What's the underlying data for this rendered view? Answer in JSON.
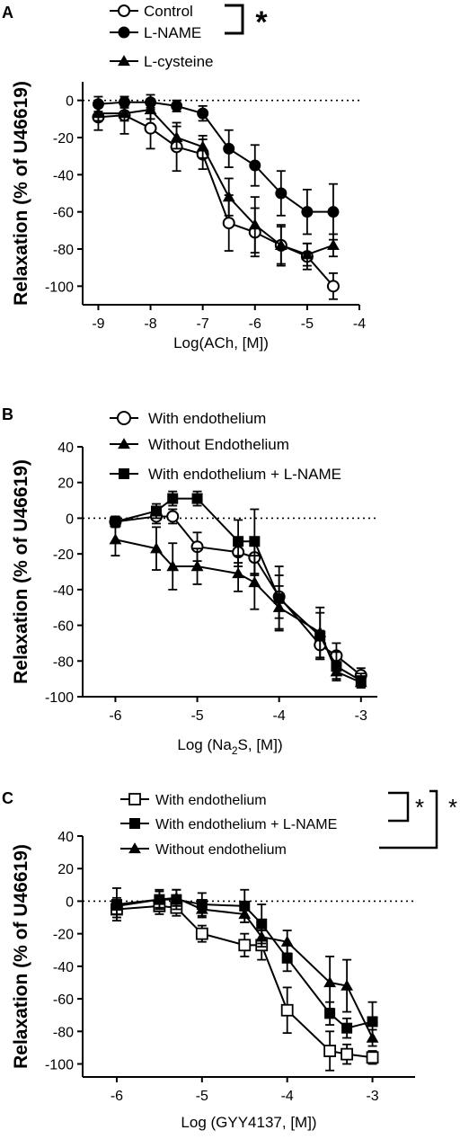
{
  "chart_data": [
    {
      "panel_label": "A",
      "type": "line",
      "xlabel": "Log(ACh, [M])",
      "ylabel": "Relaxation (% of U46619)",
      "xlim": [
        -9.3,
        -4
      ],
      "ylim": [
        -110,
        10
      ],
      "xticks": [
        -9,
        -8,
        -7,
        -6,
        -5,
        -4
      ],
      "yticks": [
        0,
        -20,
        -40,
        -60,
        -80,
        -100
      ],
      "x": [
        -9,
        -8.5,
        -8,
        -7.5,
        -7,
        -6.5,
        -6,
        -5.5,
        -5,
        -4.5
      ],
      "series": [
        {
          "name": "Control",
          "marker": "circle-open",
          "values": [
            -9,
            -8,
            -15,
            -25,
            -29,
            -66,
            -71,
            -78,
            -84,
            -100
          ],
          "err": [
            7,
            10,
            11,
            13,
            8,
            15,
            13,
            10,
            7,
            7
          ]
        },
        {
          "name": "L-NAME",
          "marker": "circle-filled",
          "values": [
            -2,
            -1,
            -1,
            -3,
            -7,
            -26,
            -35,
            -50,
            -60,
            -60
          ],
          "err": [
            4,
            3,
            4,
            3,
            4,
            10,
            11,
            12,
            12,
            15
          ]
        },
        {
          "name": "L-cysteine",
          "marker": "triangle-filled",
          "values": [
            -7,
            -7,
            -5,
            -20,
            -25,
            -52,
            -67,
            -78,
            -83,
            -78
          ],
          "err": [
            4,
            4,
            5,
            6,
            6,
            10,
            15,
            11,
            6,
            6
          ]
        }
      ],
      "legend_position": "top",
      "significance": {
        "bracket_series": [
          "Control",
          "L-NAME"
        ],
        "marker": "*"
      }
    },
    {
      "panel_label": "B",
      "type": "line",
      "xlabel_prefix": "Log (Na",
      "xlabel_sub": "2",
      "xlabel_suffix": "S, [M])",
      "ylabel": "Relaxation (% of U46619)",
      "xlim": [
        -6.4,
        -2.8
      ],
      "ylim": [
        -100,
        40
      ],
      "xticks": [
        -6,
        -5,
        -4,
        -3
      ],
      "yticks": [
        40,
        20,
        0,
        -20,
        -40,
        -60,
        -80,
        -100
      ],
      "x": [
        -6,
        -5.5,
        -5.3,
        -5,
        -4.5,
        -4.3,
        -4,
        -3.5,
        -3.3,
        -3
      ],
      "series": [
        {
          "name": "With endothelium",
          "marker": "circle-open",
          "values": [
            -2,
            1,
            1,
            -16,
            -19,
            -22,
            -44,
            -71,
            -77,
            -88
          ],
          "err": [
            3,
            4,
            4,
            8,
            8,
            10,
            12,
            8,
            7,
            4
          ]
        },
        {
          "name": "Without Endothelium",
          "marker": "triangle-filled",
          "values": [
            -12,
            -17,
            -27,
            -27,
            -31,
            -36,
            -50,
            -64,
            -86,
            -92
          ],
          "err": [
            9,
            12,
            13,
            10,
            10,
            15,
            12,
            14,
            4,
            3
          ]
        },
        {
          "name": "With endothelium + L-NAME",
          "marker": "square-filled",
          "values": [
            -2,
            4,
            11,
            11,
            -13,
            -13,
            -45,
            -66,
            -83,
            -91
          ],
          "err": [
            3,
            4,
            4,
            4,
            12,
            18,
            18,
            13,
            8,
            4
          ]
        }
      ],
      "legend_position": "top"
    },
    {
      "panel_label": "C",
      "type": "line",
      "xlabel": "Log (GYY4137, [M])",
      "ylabel": "Relaxation (% of U46619)",
      "xlim": [
        -6.4,
        -2.5
      ],
      "ylim": [
        -108,
        40
      ],
      "xticks": [
        -6,
        -5,
        -4,
        -3
      ],
      "yticks": [
        40,
        20,
        0,
        -20,
        -40,
        -60,
        -80,
        -100
      ],
      "x": [
        -6,
        -5.5,
        -5.3,
        -5,
        -4.5,
        -4.3,
        -4,
        -3.5,
        -3.3,
        -3
      ],
      "series": [
        {
          "name": "With endothelium",
          "marker": "square-open",
          "values": [
            -5,
            -3,
            -4,
            -20,
            -27,
            -27,
            -67,
            -92,
            -94,
            -96
          ],
          "err": [
            5,
            5,
            5,
            5,
            7,
            9,
            14,
            12,
            6,
            4
          ]
        },
        {
          "name": "With endothelium + L-NAME",
          "marker": "square-filled",
          "values": [
            -2,
            1,
            1,
            -2,
            -3,
            -14,
            -35,
            -69,
            -78,
            -74
          ],
          "err": [
            10,
            6,
            6,
            7,
            10,
            12,
            8,
            7,
            6,
            12
          ]
        },
        {
          "name": "Without endothelium",
          "marker": "triangle-filled",
          "values": [
            -3,
            1,
            2,
            -5,
            -8,
            -22,
            -25,
            -50,
            -52,
            -84
          ],
          "err": [
            5,
            5,
            5,
            5,
            5,
            6,
            7,
            16,
            16,
            5
          ]
        }
      ],
      "legend_position": "top",
      "significance": {
        "inner_bracket": [
          "With endothelium",
          "With endothelium + L-NAME"
        ],
        "outer_bracket": [
          "With endothelium",
          "Without endothelium"
        ],
        "marker": "*"
      }
    }
  ]
}
